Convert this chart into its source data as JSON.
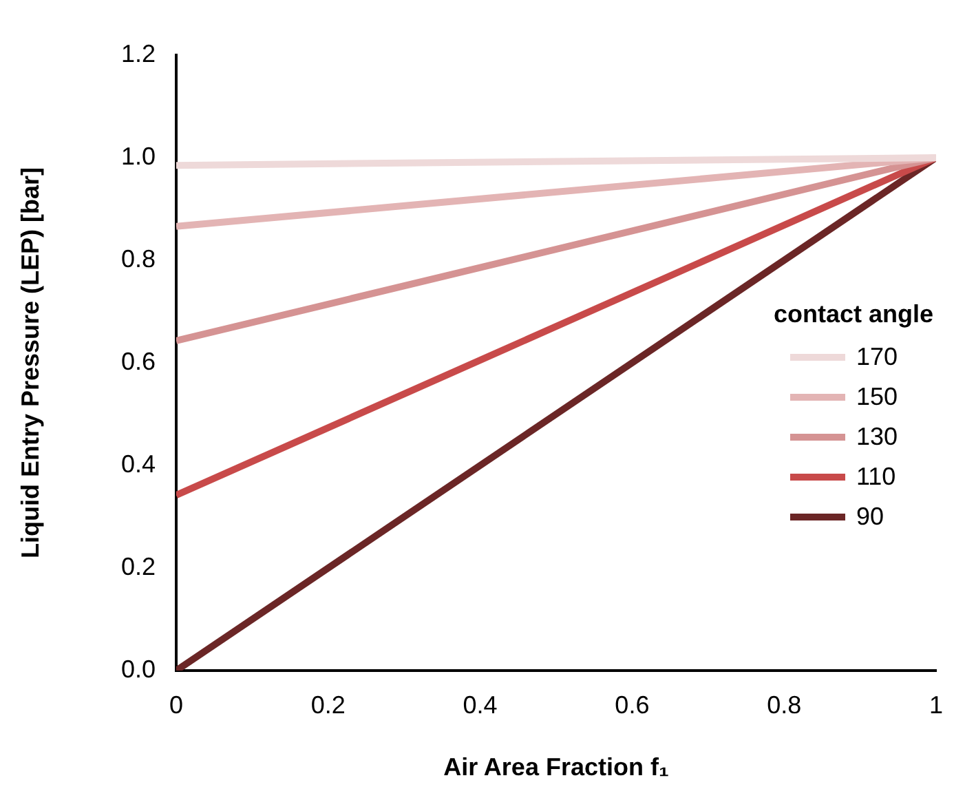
{
  "chart_data": {
    "type": "line",
    "xlabel": "Air Area Fraction f₁",
    "ylabel": "Liquid Entry Pressure (LEP) [bar]",
    "legend_title": "contact angle",
    "legend": "right",
    "x": [
      0,
      1
    ],
    "series": [
      {
        "name": "170",
        "color": "#eed9d9",
        "values": [
          0.985,
          1
        ]
      },
      {
        "name": "150",
        "color": "#e3b4b4",
        "values": [
          0.866,
          1
        ]
      },
      {
        "name": "130",
        "color": "#d59393",
        "values": [
          0.643,
          1
        ]
      },
      {
        "name": "110",
        "color": "#c84a4a",
        "values": [
          0.342,
          1
        ]
      },
      {
        "name": "90",
        "color": "#6b2626",
        "values": [
          0,
          1
        ]
      }
    ],
    "xlim": [
      0,
      1
    ],
    "xticks": [
      0,
      0.2,
      0.4,
      0.6,
      0.8,
      1
    ],
    "ylim": [
      0,
      1.2
    ],
    "yticks": [
      {
        "value": 0,
        "label": "0.0"
      },
      {
        "value": 0.2,
        "label": "0.2"
      },
      {
        "value": 0.4,
        "label": "0.4"
      },
      {
        "value": 0.6,
        "label": "0.6"
      },
      {
        "value": 0.8,
        "label": "0.8"
      },
      {
        "value": 1,
        "label": "1.0"
      },
      {
        "value": 1.2,
        "label": "1.2"
      }
    ],
    "grid": false,
    "marker": "none",
    "line_style": "solid"
  }
}
